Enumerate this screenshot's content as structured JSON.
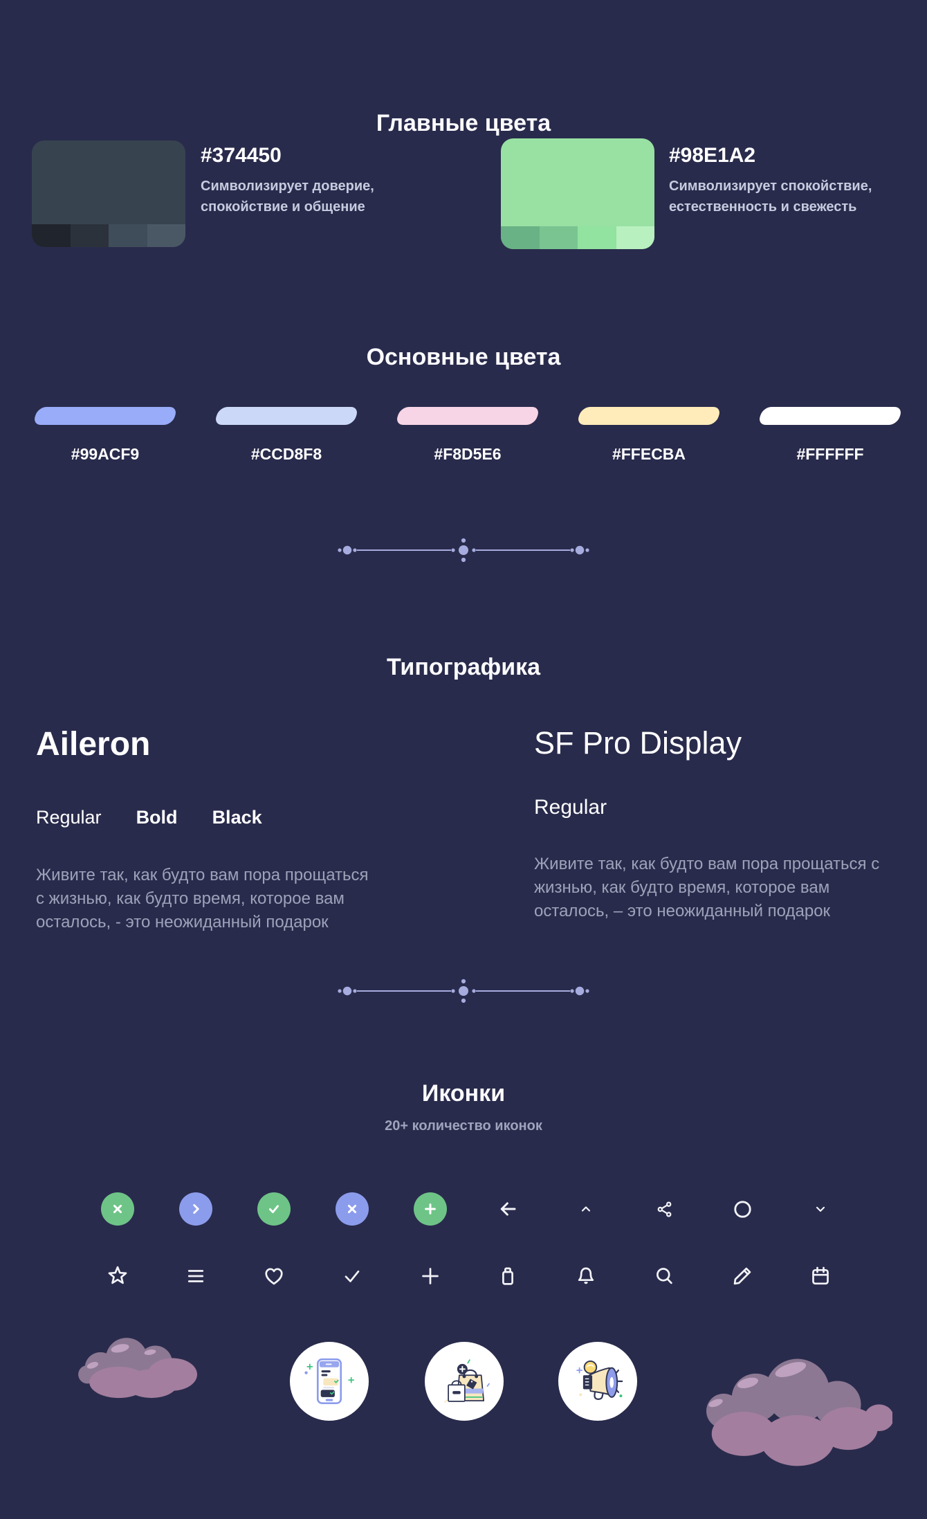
{
  "page": {
    "background": "#292B4C"
  },
  "main_colors": {
    "title": "Главные цвета",
    "swatches": [
      {
        "hex": "#374450",
        "description_lines": [
          "Символизирует доверие,",
          "спокойствие и общение"
        ],
        "shades": [
          "#20252D",
          "#2B323C",
          "#3F4D5A",
          "#4A5866"
        ]
      },
      {
        "hex": "#98E1A2",
        "description_lines": [
          "Символизирует спокойствие,",
          "естественность и свежесть"
        ],
        "shades": [
          "#69B285",
          "#7AC492",
          "#92E2A0",
          "#B8F0BF"
        ]
      }
    ]
  },
  "base_colors": {
    "title": "Основные цвета",
    "colors": [
      "#99ACF9",
      "#CCD8F8",
      "#F8D5E6",
      "#FFECBA",
      "#FFFFFF"
    ]
  },
  "typography": {
    "title": "Типографика",
    "fonts": [
      {
        "name": "Aileron",
        "weights": [
          "Regular",
          "Bold",
          "Black"
        ],
        "sample_lines": [
          "Живите так, как будто вам пора прощаться",
          "с жизнью, как будто время, которое вам",
          "осталось, - это неожиданный подарок"
        ]
      },
      {
        "name": "SF Pro Display",
        "weights": [
          "Regular"
        ],
        "sample_lines": [
          "Живите так, как будто вам пора прощаться с",
          "жизнью, как будто время, которое вам",
          "осталось, – это неожиданный подарок"
        ]
      }
    ]
  },
  "icons": {
    "title": "Иконки",
    "subtitle": "20+ количество иконок",
    "palette": {
      "green": "#6EC487",
      "periwinkle": "#8C9CEC",
      "stroke": "#F2F3F8",
      "divider": "#A6ACDE"
    },
    "row1": [
      {
        "name": "close-icon",
        "glyph": "x",
        "bg": "#6EC487"
      },
      {
        "name": "chevron-right-icon",
        "glyph": "chevron-right",
        "bg": "#8C9CEC"
      },
      {
        "name": "check-icon",
        "glyph": "check",
        "bg": "#6EC487"
      },
      {
        "name": "close-icon",
        "glyph": "x",
        "bg": "#8C9CEC"
      },
      {
        "name": "plus-icon",
        "glyph": "plus",
        "bg": "#6EC487"
      },
      {
        "name": "arrow-left-icon",
        "glyph": "arrow-left"
      },
      {
        "name": "chevron-up-icon",
        "glyph": "chevron-up"
      },
      {
        "name": "share-icon",
        "glyph": "share"
      },
      {
        "name": "circle-icon",
        "glyph": "circle"
      },
      {
        "name": "chevron-down-icon",
        "glyph": "chevron-down"
      }
    ],
    "row2": [
      {
        "name": "star-icon",
        "glyph": "star"
      },
      {
        "name": "menu-icon",
        "glyph": "menu"
      },
      {
        "name": "heart-icon",
        "glyph": "heart"
      },
      {
        "name": "check-icon",
        "glyph": "check"
      },
      {
        "name": "plus-icon",
        "glyph": "plus"
      },
      {
        "name": "trash-icon",
        "glyph": "trash"
      },
      {
        "name": "bell-icon",
        "glyph": "bell"
      },
      {
        "name": "search-icon",
        "glyph": "search"
      },
      {
        "name": "pencil-icon",
        "glyph": "pencil"
      },
      {
        "name": "calendar-icon",
        "glyph": "calendar"
      }
    ]
  },
  "illustrations": {
    "cloud_colors": {
      "top": "#8C7893",
      "bottom": "#A37E9E",
      "highlight": "#BFA2BF"
    },
    "badges": [
      "phone-chat-illustration",
      "shopping-bag-illustration",
      "megaphone-illustration"
    ]
  }
}
